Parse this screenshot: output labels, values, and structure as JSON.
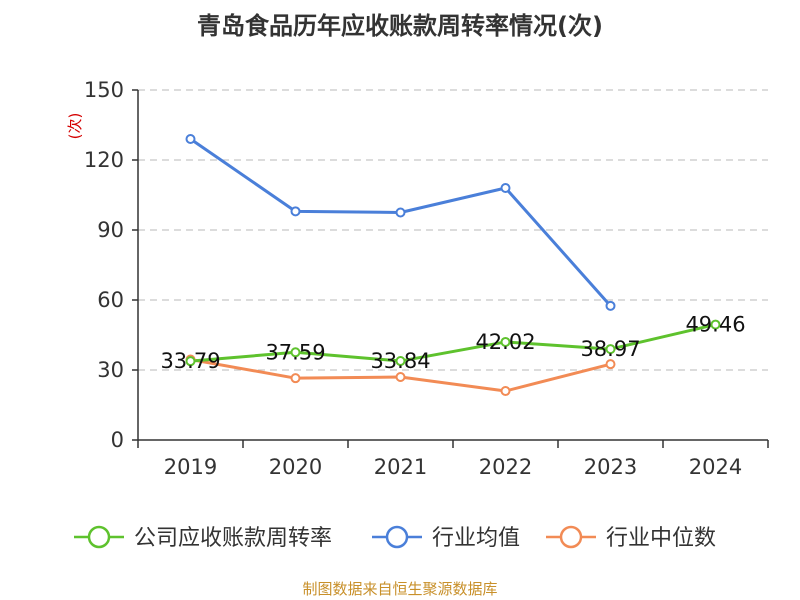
{
  "chart_data": {
    "type": "line",
    "title": "青岛食品历年应收账款周转率情况(次)",
    "ylabel": "(次)",
    "xlabel": "",
    "categories": [
      "2019",
      "2020",
      "2021",
      "2022",
      "2023",
      "2024"
    ],
    "ylim": [
      0,
      150
    ],
    "yticks": [
      0,
      30,
      60,
      90,
      120,
      150
    ],
    "grid": true,
    "legend_position": "bottom",
    "series": [
      {
        "name": "公司应收账款周转率",
        "color": "#5ec22d",
        "values": [
          33.79,
          37.59,
          33.84,
          42.02,
          38.97,
          49.46
        ],
        "labels": [
          "33.79",
          "37.59",
          "33.84",
          "42.02",
          "38.97",
          "49.46"
        ]
      },
      {
        "name": "行业均值",
        "color": "#4a7fd9",
        "values": [
          129,
          98,
          97.5,
          108,
          57.5,
          null
        ]
      },
      {
        "name": "行业中位数",
        "color": "#f28b55",
        "values": [
          34.5,
          26.5,
          27,
          21,
          32.5,
          null
        ]
      }
    ]
  },
  "footer": {
    "source": "制图数据来自恒生聚源数据库"
  }
}
